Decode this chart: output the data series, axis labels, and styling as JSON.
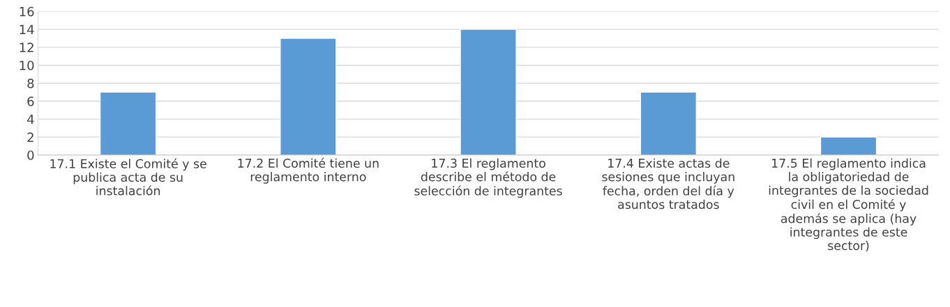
{
  "chart_data": {
    "type": "bar",
    "categories": [
      "17.1 Existe el Comité y se\npublica acta de su\ninstalación",
      "17.2 El Comité tiene un\nreglamento interno",
      "17.3 El reglamento\ndescribe el método de\nselección de integrantes",
      "17.4 Existe actas de\nsesiones que incluyan\nfecha, orden del día y\nasuntos tratados",
      "17.5 El reglamento indica\nla obligatoriedad de\nintegrantes de la sociedad\ncivil en el Comité y\nademás se aplica (hay\nintegrantes de este\nsector)"
    ],
    "values": [
      7,
      13,
      14,
      7,
      2
    ],
    "color": "#5b9bd5",
    "ylim": [
      0,
      16
    ],
    "yticks": [
      0,
      2,
      4,
      6,
      8,
      10,
      12,
      14,
      16
    ],
    "grid": "y",
    "legend": false
  }
}
